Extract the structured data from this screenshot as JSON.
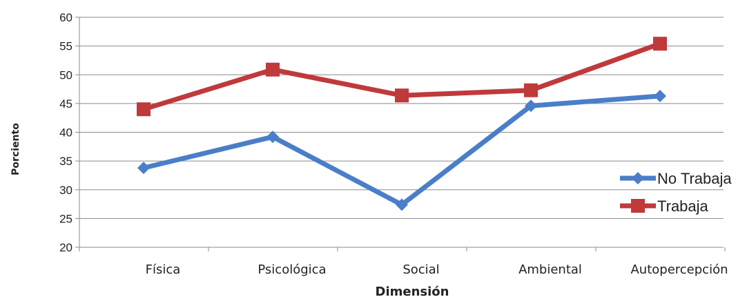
{
  "chart_data": {
    "type": "line",
    "categories": [
      "Física",
      "Psicológica",
      "Social",
      "Ambiental",
      "Autopercepción"
    ],
    "series": [
      {
        "name": "No Trabaja",
        "values": [
          33.8,
          39.2,
          27.4,
          44.6,
          46.3
        ],
        "color": "#4a7ec8",
        "marker": "diamond"
      },
      {
        "name": "Trabaja",
        "values": [
          44.0,
          50.9,
          46.4,
          47.3,
          55.4
        ],
        "color": "#c0393b",
        "marker": "square"
      }
    ],
    "title": "",
    "xlabel": "Dimensión",
    "ylabel": "Porciento",
    "ylim": [
      20,
      60
    ],
    "yticks": [
      "20",
      "25",
      "30",
      "35",
      "40",
      "45",
      "50",
      "55",
      "60"
    ],
    "grid": true,
    "legend_position": "right"
  }
}
